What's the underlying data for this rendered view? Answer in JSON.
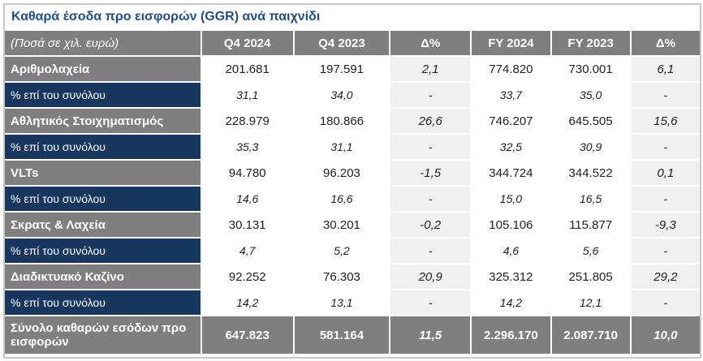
{
  "title": "Καθαρά έσοδα προ εισφορών (GGR) ανά παιχνίδι",
  "header": [
    "(Ποσά σε χιλ. ευρώ)",
    "Q4 2024",
    "Q4 2023",
    "Δ%",
    "FY 2024",
    "FY 2023",
    "Δ%"
  ],
  "rows": [
    {
      "type": "main",
      "cells": [
        "Αριθμολαχεία",
        "201.681",
        "197.591",
        "2,1",
        "774.820",
        "730.001",
        "6,1"
      ]
    },
    {
      "type": "pct",
      "cells": [
        "% επί του συνόλου",
        "31,1",
        "34,0",
        "-",
        "33,7",
        "35,0",
        "-"
      ]
    },
    {
      "type": "main",
      "cells": [
        "Αθλητικός Στοιχηματισμός",
        "228.979",
        "180.866",
        "26,6",
        "746.207",
        "645.505",
        "15,6"
      ]
    },
    {
      "type": "pct",
      "cells": [
        "% επί του συνόλου",
        "35,3",
        "31,1",
        "-",
        "32,5",
        "30,9",
        "-"
      ]
    },
    {
      "type": "main",
      "cells": [
        "VLTs",
        "94.780",
        "96.203",
        "-1,5",
        "344.724",
        "344.522",
        "0,1"
      ]
    },
    {
      "type": "pct",
      "cells": [
        "% επί του συνόλου",
        "14,6",
        "16,6",
        "-",
        "15,0",
        "16,5",
        "-"
      ]
    },
    {
      "type": "main",
      "cells": [
        "Σκρατς & Λαχεία",
        "30.131",
        "30.201",
        "-0,2",
        "105.106",
        "115.877",
        "-9,3"
      ]
    },
    {
      "type": "pct",
      "cells": [
        "% επί του συνόλου",
        "4,7",
        "5,2",
        "-",
        "4,6",
        "5,6",
        "-"
      ]
    },
    {
      "type": "main",
      "cells": [
        "Διαδικτυακό Καζίνο",
        "92.252",
        "76.303",
        "20,9",
        "325.312",
        "251.805",
        "29,2"
      ]
    },
    {
      "type": "pct",
      "cells": [
        "% επί του συνόλου",
        "14,2",
        "13,1",
        "-",
        "14,2",
        "12,1",
        "-"
      ]
    },
    {
      "type": "total",
      "cells": [
        "Σύνολο καθαρών εσόδων προ εισφορών",
        "647.823",
        "581.164",
        "11,5",
        "2.296.170",
        "2.087.710",
        "10,0"
      ]
    }
  ]
}
